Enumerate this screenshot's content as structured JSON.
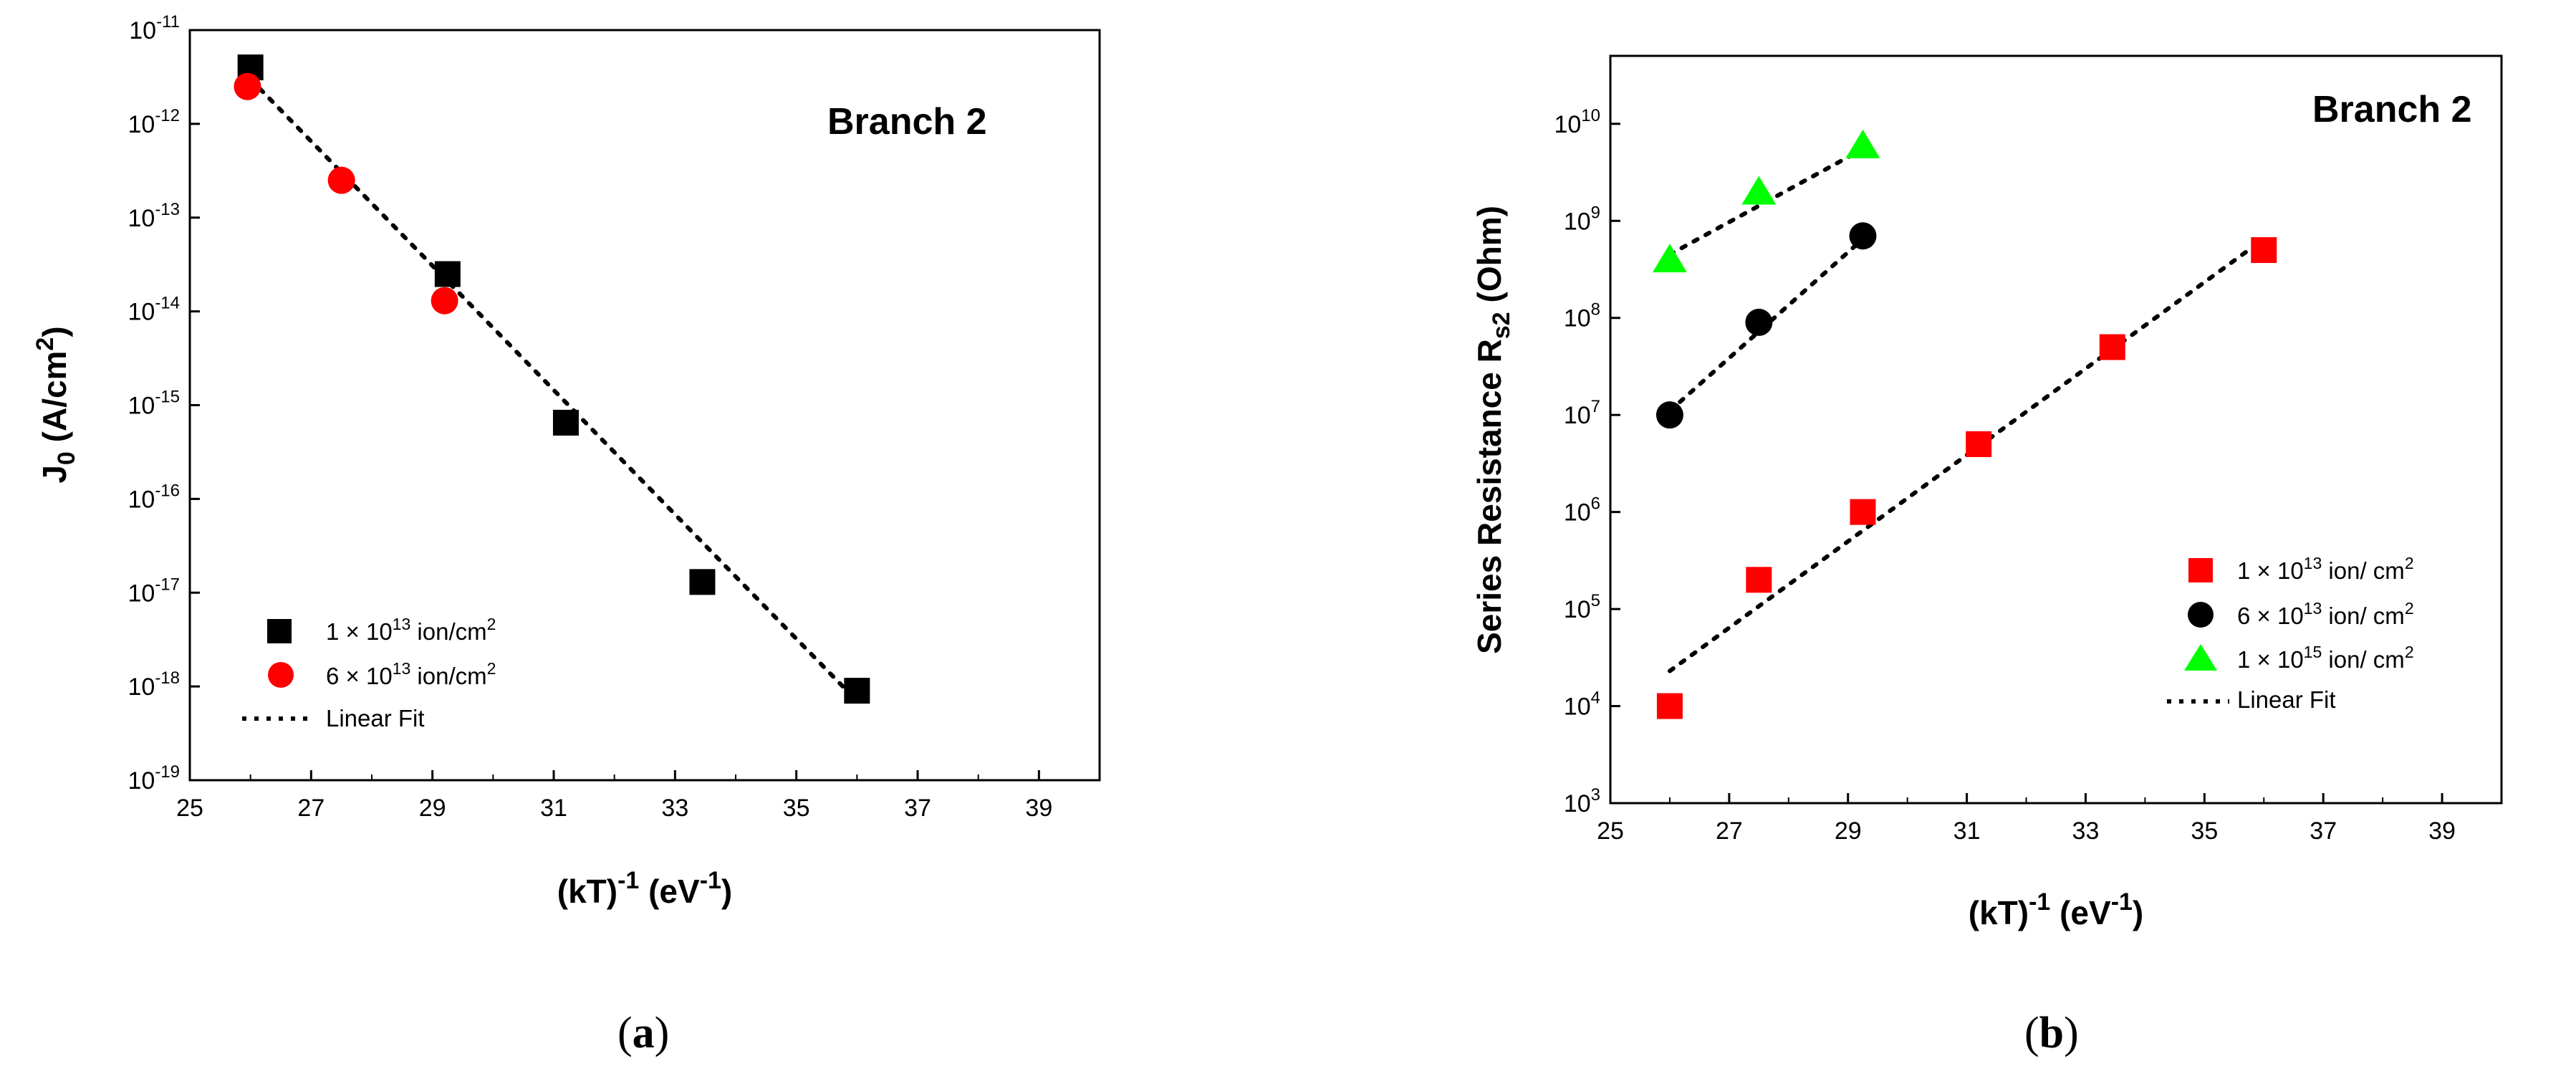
{
  "chart_data": [
    {
      "panel": "a",
      "type": "scatter",
      "annotation": "Branch 2",
      "xlabel": "(kT)^-1 (eV^-1)",
      "ylabel": "J0 (A/cm2)",
      "xlim": [
        25,
        40
      ],
      "xticks": [
        25,
        27,
        29,
        31,
        33,
        35,
        37,
        39
      ],
      "ylim": [
        -19,
        -11
      ],
      "yscale": "log",
      "yticks": [
        "10-11",
        "10-12",
        "10-13",
        "10-14",
        "10-15",
        "10-16",
        "10-17",
        "10-18",
        "10-19"
      ],
      "legend_position": "lower-left",
      "series": [
        {
          "name": "1 × 10^13 ion/cm^2",
          "marker": "square",
          "color": "#000000",
          "x": [
            26.0,
            29.25,
            31.2,
            33.45,
            36.0
          ],
          "y": [
            4e-12,
            2.5e-14,
            6.5e-16,
            1.3e-17,
            9e-19
          ]
        },
        {
          "name": "6 × 10^13 ion/cm^2",
          "marker": "circle",
          "color": "#ff0000",
          "x": [
            25.95,
            27.5,
            29.2
          ],
          "y": [
            2.5e-12,
            2.5e-13,
            1.3e-14
          ]
        },
        {
          "name": "Linear Fit",
          "marker": "dotted-line",
          "color": "#000000",
          "x": [
            26.0,
            36.0
          ],
          "y": [
            3e-12,
            7e-19
          ]
        }
      ]
    },
    {
      "panel": "b",
      "type": "scatter",
      "annotation": "Branch 2",
      "xlabel": "(kT)^-1 (eV^-1)",
      "ylabel": "Series Resistance Rs2 (Ohm)",
      "xlim": [
        25,
        40
      ],
      "xticks": [
        25,
        27,
        29,
        31,
        33,
        35,
        37,
        39
      ],
      "ylim": [
        3,
        10.7
      ],
      "yscale": "log",
      "yticks": [
        "10^10",
        "10^9",
        "10^8",
        "10^7",
        "10^6",
        "10^5",
        "10^4",
        "10^3"
      ],
      "legend_position": "lower-right",
      "series": [
        {
          "name": "1 × 10^13 ion/ cm^2",
          "marker": "square",
          "color": "#ff0000",
          "x": [
            26.0,
            27.5,
            29.25,
            31.2,
            33.45,
            36.0
          ],
          "y": [
            10000.0,
            200000.0,
            1000000.0,
            5000000.0,
            50000000.0,
            500000000.0
          ]
        },
        {
          "name": "6 × 10^13 ion/ cm^2",
          "marker": "circle",
          "color": "#000000",
          "x": [
            26.0,
            27.5,
            29.25
          ],
          "y": [
            10000000.0,
            90000000.0,
            700000000.0
          ]
        },
        {
          "name": "1 × 10^15 ion/ cm^2",
          "marker": "triangle",
          "color": "#00ff00",
          "x": [
            26.0,
            27.5,
            29.25
          ],
          "y": [
            400000000.0,
            2000000000.0,
            6000000000.0
          ]
        },
        {
          "name": "Linear Fit",
          "marker": "dotted-line",
          "color": "#000000",
          "fits": [
            {
              "x": [
                26.0,
                36.0
              ],
              "y": [
                23000.0,
                650000000.0
              ]
            },
            {
              "x": [
                26.0,
                29.25
              ],
              "y": [
                11000000.0,
                650000000.0
              ]
            },
            {
              "x": [
                26.0,
                29.25
              ],
              "y": [
                450000000.0,
                5500000000.0
              ]
            }
          ]
        }
      ]
    }
  ],
  "text": {
    "panel_a": {
      "annotation": "Branch 2",
      "ylabel_main": "J",
      "ylabel_sub": "0",
      "ylabel_rest": " (A/cm",
      "ylabel_sup": "2",
      "ylabel_end": ")",
      "xlabel_main": "(kT)",
      "xlabel_sup1": "-1",
      "xlabel_mid": " (eV",
      "xlabel_sup2": "-1",
      "xlabel_end": ")",
      "ytick_base": "10",
      "ytick_exps": [
        "-11",
        "-12",
        "-13",
        "-14",
        "-15",
        "-16",
        "-17",
        "-18",
        "-19"
      ],
      "xtick_labels": [
        "25",
        "27",
        "29",
        "31",
        "33",
        "35",
        "37",
        "39"
      ],
      "legend": [
        {
          "pre": "1 × 10",
          "sup": "13",
          "post": " ion/cm",
          "sup2": "2"
        },
        {
          "pre": "6 × 10",
          "sup": "13",
          "post": " ion/cm",
          "sup2": "2"
        },
        {
          "pre": "Linear Fit",
          "sup": "",
          "post": "",
          "sup2": ""
        }
      ]
    },
    "panel_b": {
      "annotation": "Branch 2",
      "ylabel_main": "Series Resistance R",
      "ylabel_sub": "s2",
      "ylabel_end": " (Ohm)",
      "xlabel_main": "(kT)",
      "xlabel_sup1": "-1",
      "xlabel_mid": " (eV",
      "xlabel_sup2": "-1",
      "xlabel_end": ")",
      "ytick_base": "10",
      "ytick_exps": [
        "10",
        "9",
        "8",
        "7",
        "6",
        "5",
        "4",
        "3"
      ],
      "xtick_labels": [
        "25",
        "27",
        "29",
        "31",
        "33",
        "35",
        "37",
        "39"
      ],
      "legend": [
        {
          "pre": "1 × 10",
          "sup": "13",
          "post": " ion/ cm",
          "sup2": "2"
        },
        {
          "pre": "6 × 10",
          "sup": "13",
          "post": " ion/ cm",
          "sup2": "2"
        },
        {
          "pre": "1 × 10",
          "sup": "15",
          "post": " ion/ cm",
          "sup2": "2"
        },
        {
          "pre": "Linear Fit",
          "sup": "",
          "post": "",
          "sup2": ""
        }
      ]
    },
    "captions": {
      "a_open": "(",
      "a_letter": "a",
      "a_close": ")",
      "b_open": "(",
      "b_letter": "b",
      "b_close": ")"
    }
  }
}
